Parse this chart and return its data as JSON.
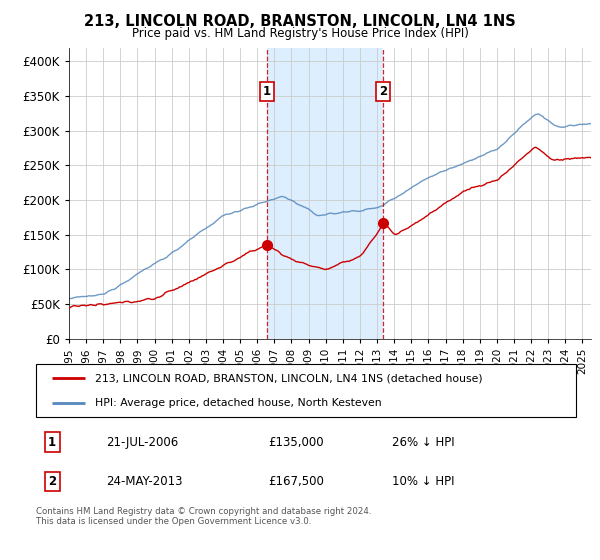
{
  "title": "213, LINCOLN ROAD, BRANSTON, LINCOLN, LN4 1NS",
  "subtitle": "Price paid vs. HM Land Registry's House Price Index (HPI)",
  "legend_line1": "213, LINCOLN ROAD, BRANSTON, LINCOLN, LN4 1NS (detached house)",
  "legend_line2": "HPI: Average price, detached house, North Kesteven",
  "annotation1_label": "1",
  "annotation1_date": "21-JUL-2006",
  "annotation1_price": "£135,000",
  "annotation1_hpi": "26% ↓ HPI",
  "annotation2_label": "2",
  "annotation2_date": "24-MAY-2013",
  "annotation2_price": "£167,500",
  "annotation2_hpi": "10% ↓ HPI",
  "footnote": "Contains HM Land Registry data © Crown copyright and database right 2024.\nThis data is licensed under the Open Government Licence v3.0.",
  "red_color": "#cc0000",
  "blue_color": "#5588bb",
  "shade_color": "#ddeeff",
  "background_color": "#ffffff",
  "ylim": [
    0,
    420000
  ],
  "yticks": [
    0,
    50000,
    100000,
    150000,
    200000,
    250000,
    300000,
    350000,
    400000
  ],
  "sale1_x": 2006.542,
  "sale1_y": 135000,
  "sale2_x": 2013.375,
  "sale2_y": 167500,
  "xlim_start": 1995,
  "xlim_end": 2025.5
}
